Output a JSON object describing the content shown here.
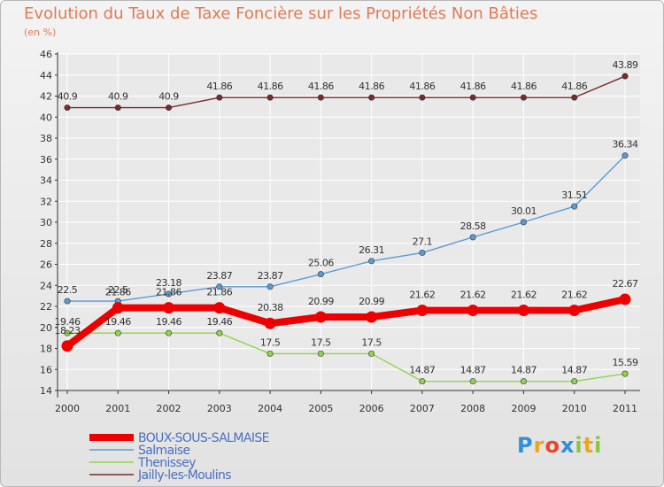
{
  "title": "Evolution du Taux de Taxe Foncière sur les Propriétés Non Bâties",
  "subtitle": "(en %)",
  "logo": {
    "text": "Proxiti",
    "letters": [
      {
        "ch": "P",
        "color": "#2f8fd8"
      },
      {
        "ch": "r",
        "color": "#f2a31c"
      },
      {
        "ch": "o",
        "color": "#e8472a"
      },
      {
        "ch": "x",
        "color": "#2f8fd8"
      },
      {
        "ch": "i",
        "color": "#8bc43f"
      },
      {
        "ch": "t",
        "color": "#f2a31c"
      },
      {
        "ch": "i",
        "color": "#8bc43f"
      }
    ]
  },
  "chart_data": {
    "type": "line",
    "title": "Evolution du Taux de Taxe Foncière sur les Propriétés Non Bâties",
    "ylabel": "(en %)",
    "x": [
      "2000",
      "2001",
      "2002",
      "2003",
      "2004",
      "2005",
      "2006",
      "2007",
      "2008",
      "2009",
      "2010",
      "2011"
    ],
    "ylim": [
      14,
      46
    ],
    "yticks": [
      14,
      16,
      18,
      20,
      22,
      24,
      26,
      28,
      30,
      32,
      34,
      36,
      38,
      40,
      42,
      44,
      46
    ],
    "legend_position": "bottom-left",
    "series": [
      {
        "name": "BOUX-SOUS-SALMAISE",
        "color": "#ee0000",
        "emphasis": true,
        "values": [
          18.23,
          21.86,
          21.86,
          21.86,
          20.38,
          20.99,
          20.99,
          21.62,
          21.62,
          21.62,
          21.62,
          22.67
        ],
        "labels": [
          "18.23",
          "21.86",
          "21.86",
          "21.86",
          "20.38",
          "20.99",
          "20.99",
          "21.62",
          "21.62",
          "21.62",
          "21.62",
          "22.67"
        ]
      },
      {
        "name": "Salmaise",
        "color": "#5b9bd5",
        "emphasis": false,
        "values": [
          22.5,
          22.5,
          23.18,
          23.87,
          23.87,
          25.06,
          26.31,
          27.1,
          28.58,
          30.01,
          31.51,
          36.34
        ],
        "labels": [
          "22.5",
          "22.5",
          "23.18",
          "23.87",
          "23.87",
          "25.06",
          "26.31",
          "27.1",
          "28.58",
          "30.01",
          "31.51",
          "36.34"
        ]
      },
      {
        "name": "Thenissey",
        "color": "#8fd44a",
        "emphasis": false,
        "values": [
          19.46,
          19.46,
          19.46,
          19.46,
          17.5,
          17.5,
          17.5,
          14.87,
          14.87,
          14.87,
          14.87,
          15.59
        ],
        "labels": [
          "19.46",
          "19.46",
          "19.46",
          "19.46",
          "17.5",
          "17.5",
          "17.5",
          "14.87",
          "14.87",
          "14.87",
          "14.87",
          "15.59"
        ]
      },
      {
        "name": "Jailly-les-Moulins",
        "color": "#7a2a2a",
        "emphasis": false,
        "values": [
          40.9,
          40.9,
          40.9,
          41.86,
          41.86,
          41.86,
          41.86,
          41.86,
          41.86,
          41.86,
          41.86,
          43.89
        ],
        "labels": [
          "40.9",
          "40.9",
          "40.9",
          "41.86",
          "41.86",
          "41.86",
          "41.86",
          "41.86",
          "41.86",
          "41.86",
          "41.86",
          "43.89"
        ]
      }
    ]
  }
}
